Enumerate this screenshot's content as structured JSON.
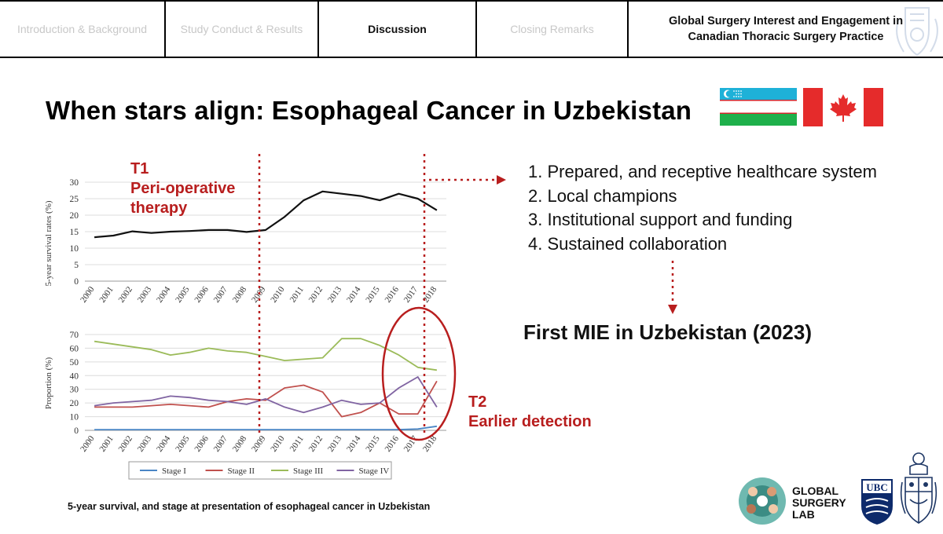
{
  "nav": {
    "tabs": [
      {
        "label": "Introduction & Background",
        "active": false
      },
      {
        "label": "Study Conduct & Results",
        "active": false
      },
      {
        "label": "Discussion",
        "active": true
      },
      {
        "label": "Closing Remarks",
        "active": false
      }
    ],
    "title_line1": "Global Surgery Interest and Engagement in",
    "title_line2": "Canadian Thoracic Surgery Practice"
  },
  "slide": {
    "headline": "When stars align: Esophageal Cancer in Uzbekistan",
    "flags": [
      "uzbekistan-flag",
      "canada-flag"
    ],
    "list_items": [
      "1.  Prepared, and receptive healthcare system",
      "2.  Local champions",
      "3.  Institutional support and funding",
      "4.  Sustained collaboration"
    ],
    "conclusion": "First MIE in Uzbekistan (2023)",
    "t1": {
      "line1": "T1",
      "line2": "Peri-operative",
      "line3": "therapy"
    },
    "t2": {
      "line1": "T2",
      "line2": "Earlier detection"
    },
    "caption": "5-year survival, and stage at presentation of esophageal cancer in Uzbekistan",
    "logo_text": [
      "GLOBAL",
      "SURGERY",
      "LAB"
    ],
    "ubc_text": "UBC",
    "accent_color": "#b81e1e"
  },
  "chart_data": [
    {
      "type": "line",
      "ylabel": "5-year survival rates (%)",
      "x": [
        "2000",
        "2001",
        "2002",
        "2003",
        "2004",
        "2005",
        "2006",
        "2007",
        "2008",
        "2009",
        "2010",
        "2011",
        "2012",
        "2013",
        "2014",
        "2015",
        "2016",
        "2017",
        "2018"
      ],
      "ylim": [
        0,
        30
      ],
      "yticks": [
        0,
        5,
        10,
        15,
        20,
        25,
        30
      ],
      "series": [
        {
          "values": [
            13.3,
            13.8,
            15.1,
            14.6,
            15.0,
            15.2,
            15.5,
            15.5,
            14.9,
            15.5,
            19.5,
            24.5,
            27.2,
            26.5,
            25.8,
            24.5,
            26.5,
            25.0,
            21.5
          ],
          "color": "#111111"
        }
      ]
    },
    {
      "type": "line",
      "ylabel": "Proportion (%)",
      "x": [
        "2000",
        "2001",
        "2002",
        "2003",
        "2004",
        "2005",
        "2006",
        "2007",
        "2008",
        "2009",
        "2010",
        "2011",
        "2012",
        "2013",
        "2014",
        "2015",
        "2016",
        "2017",
        "2018"
      ],
      "ylim": [
        0,
        70
      ],
      "yticks": [
        0,
        10,
        20,
        30,
        40,
        50,
        60,
        70
      ],
      "legend": "bottom",
      "series": [
        {
          "name": "Stage I",
          "color": "#4a86c5",
          "values": [
            0.5,
            0.5,
            0.5,
            0.5,
            0.5,
            0.5,
            0.5,
            0.5,
            0.5,
            0.5,
            0.5,
            0.5,
            0.5,
            0.5,
            0.5,
            0.5,
            0.5,
            1.0,
            3.0
          ]
        },
        {
          "name": "Stage II",
          "color": "#c0504d",
          "values": [
            17,
            17,
            17,
            18,
            19,
            18,
            17,
            21,
            23,
            22,
            31,
            33,
            28,
            10,
            13,
            20,
            12,
            12,
            36
          ]
        },
        {
          "name": "Stage III",
          "color": "#9bbb59",
          "values": [
            65,
            63,
            61,
            59,
            55,
            57,
            60,
            58,
            57,
            54,
            51,
            52,
            53,
            67,
            67,
            62,
            55,
            46,
            44
          ]
        },
        {
          "name": "Stage IV",
          "color": "#8064a2",
          "values": [
            18,
            20,
            21,
            22,
            25,
            24,
            22,
            21,
            19,
            23,
            17,
            13,
            17,
            22,
            19,
            20,
            31,
            39,
            17
          ]
        }
      ]
    }
  ]
}
